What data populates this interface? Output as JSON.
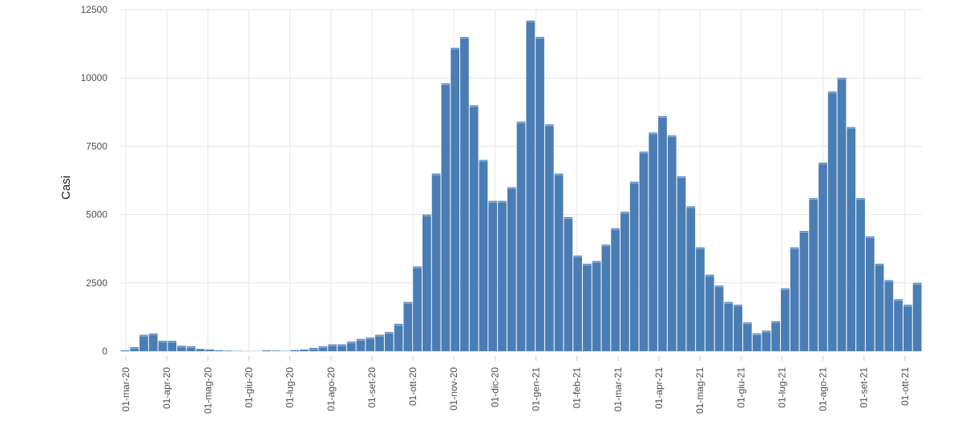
{
  "chart_data": {
    "type": "bar",
    "title": "",
    "xlabel": "",
    "ylabel": "Casi",
    "ylim": [
      0,
      12500
    ],
    "y_ticks": [
      0,
      2500,
      5000,
      7500,
      10000,
      12500
    ],
    "grid": true,
    "bar_color": "#4a7db4",
    "x_tick_labels": [
      "01-mar-20",
      "01-apr-20",
      "01-mag-20",
      "01-giu-20",
      "01-lug-20",
      "01-ago-20",
      "01-set-20",
      "01-ott-20",
      "01-nov-20",
      "01-dic-20",
      "01-gen-21",
      "01-feb-21",
      "01-mar-21",
      "01-apr-21",
      "01-mag-21",
      "01-giu-21",
      "01-lug-21",
      "01-ago-21",
      "01-set-21",
      "01-ott-21"
    ],
    "values": [
      30,
      150,
      600,
      650,
      380,
      380,
      200,
      180,
      80,
      60,
      30,
      20,
      10,
      5,
      5,
      30,
      20,
      10,
      40,
      60,
      120,
      180,
      250,
      250,
      350,
      450,
      500,
      600,
      700,
      1000,
      1800,
      3100,
      5000,
      6500,
      9800,
      11100,
      11500,
      9000,
      7000,
      5500,
      5500,
      6000,
      8400,
      12100,
      11500,
      8300,
      6500,
      4900,
      3500,
      3200,
      3300,
      3900,
      4500,
      5100,
      6200,
      7300,
      8000,
      8600,
      7900,
      6400,
      5300,
      3800,
      2800,
      2400,
      1800,
      1700,
      1050,
      650,
      750,
      1100,
      2300,
      3800,
      4400,
      5600,
      6900,
      9500,
      10000,
      8200,
      5600,
      4200,
      3200,
      2600,
      1900,
      1700,
      2500
    ]
  }
}
